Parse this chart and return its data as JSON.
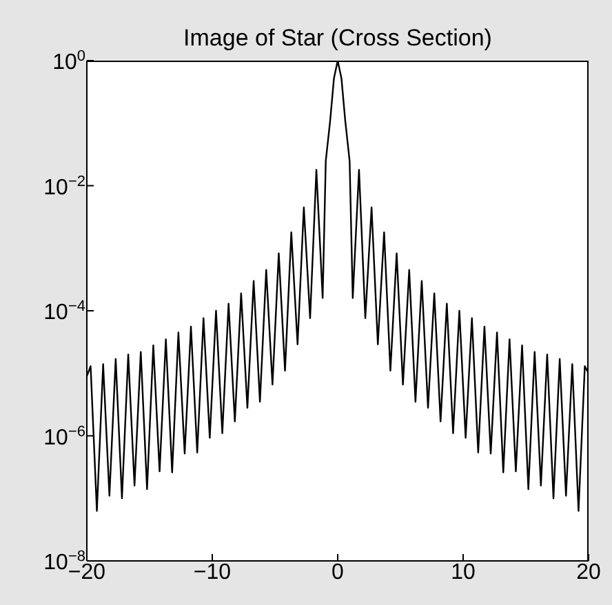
{
  "chart_data": {
    "type": "line",
    "title": "Image of Star (Cross Section)",
    "x": [
      -20,
      -19.7,
      -19.2,
      -18.7,
      -18.2,
      -17.7,
      -17.2,
      -16.7,
      -16.2,
      -15.7,
      -15.2,
      -14.7,
      -14.2,
      -13.7,
      -13.2,
      -12.7,
      -12.2,
      -11.7,
      -11.2,
      -10.7,
      -10.2,
      -9.7,
      -9.2,
      -8.7,
      -8.2,
      -7.7,
      -7.2,
      -6.7,
      -6.2,
      -5.7,
      -5.2,
      -4.7,
      -4.2,
      -3.7,
      -3.2,
      -2.7,
      -2.2,
      -1.7,
      -1.2,
      -0.95,
      -0.6,
      -0.3,
      0,
      0.3,
      0.6,
      0.95,
      1.2,
      1.7,
      2.2,
      2.7,
      3.2,
      3.7,
      4.2,
      4.7,
      5.2,
      5.7,
      6.2,
      6.7,
      7.2,
      7.7,
      8.2,
      8.7,
      9.2,
      9.7,
      10.2,
      10.7,
      11.2,
      11.7,
      12.2,
      12.7,
      13.2,
      13.7,
      14.2,
      14.7,
      15.2,
      15.7,
      16.2,
      16.7,
      17.2,
      17.7,
      18.2,
      18.7,
      19.2,
      19.7,
      20
    ],
    "series": [
      {
        "color": "#000000",
        "values": [
          9e-06,
          1.3e-05,
          6.3e-08,
          1.4e-05,
          1.1e-07,
          1.7e-05,
          1e-07,
          2e-05,
          1.6e-07,
          2.2e-05,
          1.4e-07,
          2.8e-05,
          2.7e-07,
          3.5e-05,
          2.6e-07,
          4.5e-05,
          5.2e-07,
          5.6e-05,
          5.4e-07,
          7.6e-05,
          9.3e-07,
          0.0001,
          1.1e-06,
          0.00013,
          1.7e-06,
          0.00019,
          2.8e-06,
          0.0003,
          3.5e-06,
          0.00045,
          6.6e-06,
          0.00083,
          1.1e-05,
          0.0018,
          2.9e-05,
          0.0045,
          7.6e-05,
          0.018,
          0.00016,
          0.025,
          0.11,
          0.52,
          1,
          0.52,
          0.11,
          0.025,
          0.00016,
          0.018,
          7.6e-05,
          0.0045,
          2.9e-05,
          0.0018,
          1.1e-05,
          0.00083,
          6.6e-06,
          0.00045,
          3.5e-06,
          0.0003,
          2.8e-06,
          0.00019,
          1.7e-06,
          0.00013,
          1.1e-06,
          0.0001,
          9.3e-07,
          7.6e-05,
          5.4e-07,
          5.6e-05,
          5.2e-07,
          4.5e-05,
          2.6e-07,
          3.5e-05,
          2.7e-07,
          2.8e-05,
          1.4e-07,
          2.2e-05,
          1.6e-07,
          2e-05,
          1e-07,
          1.7e-05,
          1.1e-07,
          1.4e-05,
          6.3e-08,
          1.3e-05,
          1e-05
        ]
      }
    ],
    "xlim": [
      -20,
      20
    ],
    "xticks": [
      {
        "value": -20,
        "label": "−20"
      },
      {
        "value": -10,
        "label": "−10"
      },
      0,
      10,
      20
    ],
    "ylim": [
      1e-08,
      1
    ],
    "yticks": [
      {
        "value": 1e-08,
        "label": "10$^{−8}$"
      },
      {
        "value": 1e-06,
        "label": "10$^{−6}$"
      },
      {
        "value": 0.0001,
        "label": "10$^{−4}$"
      },
      {
        "value": 0.01,
        "label": "10$^{−2}$"
      },
      {
        "value": 1,
        "label": "10$^{0}$"
      }
    ],
    "log": "y"
  }
}
